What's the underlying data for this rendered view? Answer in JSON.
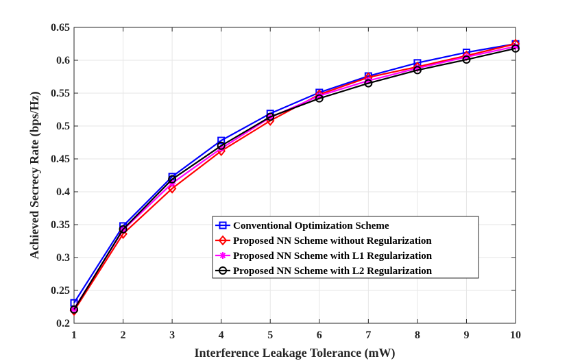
{
  "chart_data": {
    "type": "line",
    "title": "",
    "xlabel": "Interference Leakage Tolerance (mW)",
    "ylabel": "Achieved Secrecy Rate (bps/Hz)",
    "xlim": [
      1,
      10
    ],
    "ylim": [
      0.2,
      0.65
    ],
    "xticks": [
      1,
      2,
      3,
      4,
      5,
      6,
      7,
      8,
      9,
      10
    ],
    "yticks": [
      0.2,
      0.25,
      0.3,
      0.35,
      0.4,
      0.45,
      0.5,
      0.55,
      0.6,
      0.65
    ],
    "xtick_labels": [
      "1",
      "2",
      "3",
      "4",
      "5",
      "6",
      "7",
      "8",
      "9",
      "10"
    ],
    "ytick_labels": [
      "0.2",
      "0.25",
      "0.3",
      "0.35",
      "0.4",
      "0.45",
      "0.5",
      "0.55",
      "0.6",
      "0.65"
    ],
    "grid": true,
    "legend_position": "lower-right",
    "x": [
      1,
      2,
      3,
      4,
      5,
      6,
      7,
      8,
      9,
      10
    ],
    "series": [
      {
        "name": "Conventional Optimization Scheme",
        "color": "#0000ff",
        "marker": "square",
        "values": [
          0.231,
          0.348,
          0.423,
          0.478,
          0.519,
          0.551,
          0.576,
          0.596,
          0.612,
          0.625
        ]
      },
      {
        "name": "Proposed NN Scheme without Regularization",
        "color": "#ff0000",
        "marker": "diamond",
        "values": [
          0.219,
          0.336,
          0.405,
          0.462,
          0.508,
          0.548,
          0.574,
          0.59,
          0.607,
          0.625
        ]
      },
      {
        "name": "Proposed NN Scheme with L1 Regularization",
        "color": "#ff00ff",
        "marker": "star",
        "values": [
          0.222,
          0.342,
          0.413,
          0.466,
          0.513,
          0.546,
          0.569,
          0.588,
          0.605,
          0.621
        ]
      },
      {
        "name": "Proposed NN Scheme with L2 Regularization",
        "color": "#000000",
        "marker": "circle",
        "values": [
          0.221,
          0.343,
          0.419,
          0.47,
          0.514,
          0.542,
          0.565,
          0.585,
          0.601,
          0.618
        ]
      }
    ]
  }
}
